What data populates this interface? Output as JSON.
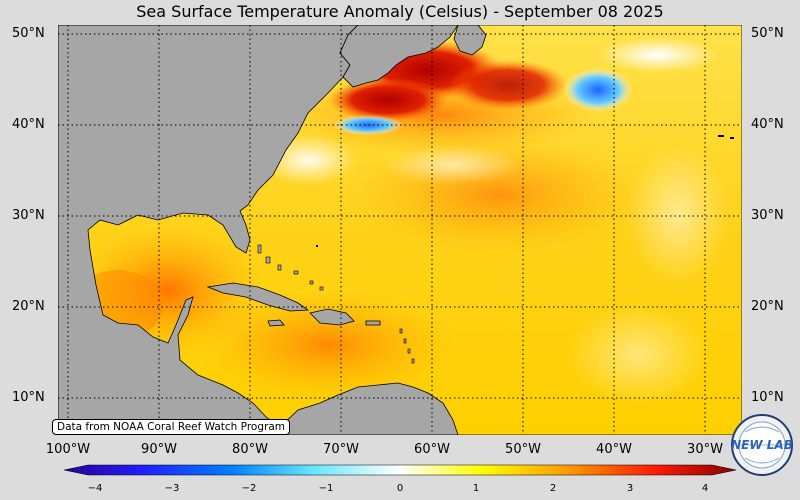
{
  "title": "Sea Surface Temperature Anomaly (Celsius) - September 08 2025",
  "credit": "Data from NOAA Coral Reef Watch Program",
  "lat_labels": [
    "50°N",
    "40°N",
    "30°N",
    "20°N",
    "10°N"
  ],
  "lon_labels": [
    "100°W",
    "90°W",
    "80°W",
    "70°W",
    "60°W",
    "50°W",
    "40°W",
    "30°W"
  ],
  "colorbar": {
    "ticks": [
      "−4",
      "−3",
      "−2",
      "−1",
      "0",
      "1",
      "2",
      "3",
      "4"
    ],
    "range": [
      -4,
      4
    ],
    "colors": [
      "#2a0096",
      "#0040ff",
      "#00aaff",
      "#80ffff",
      "#ffffff",
      "#ffff00",
      "#ff9900",
      "#ff2200",
      "#8b0000"
    ]
  },
  "logo": {
    "text": "NEW LAB",
    "icon": "globe-logo-icon"
  },
  "colors": {
    "land": "#a6a6a6",
    "background": "#dcdcdc",
    "warm": "#ffcc00",
    "hot": "#d40000",
    "cool": "#3399ff"
  }
}
